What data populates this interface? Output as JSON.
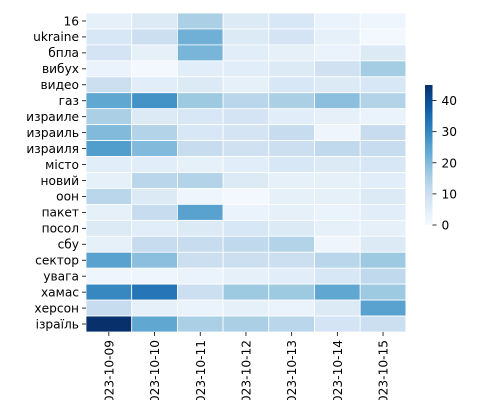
{
  "chart_data": {
    "type": "heatmap",
    "title": "",
    "xlabel": "",
    "ylabel": "",
    "x": [
      "2023-10-09",
      "2023-10-10",
      "2023-10-11",
      "2023-10-12",
      "2023-10-13",
      "2023-10-14",
      "2023-10-15"
    ],
    "y": [
      "16",
      "ukraine",
      "бпла",
      "вибух",
      "видео",
      "газ",
      "израиле",
      "израиль",
      "израиля",
      "місто",
      "новий",
      "оон",
      "пакет",
      "посол",
      "сбу",
      "сектор",
      "увага",
      "хамас",
      "херсон",
      "ізраїль"
    ],
    "values": [
      [
        4,
        6,
        15,
        6,
        7,
        3,
        2
      ],
      [
        7,
        10,
        22,
        6,
        8,
        4,
        1
      ],
      [
        8,
        4,
        21,
        5,
        4,
        3,
        6
      ],
      [
        3,
        1,
        5,
        5,
        6,
        9,
        16
      ],
      [
        10,
        5,
        6,
        4,
        7,
        6,
        7
      ],
      [
        24,
        28,
        17,
        13,
        15,
        19,
        14
      ],
      [
        15,
        6,
        7,
        8,
        5,
        4,
        3
      ],
      [
        20,
        14,
        7,
        8,
        11,
        2,
        11
      ],
      [
        26,
        20,
        11,
        9,
        10,
        12,
        11
      ],
      [
        5,
        5,
        4,
        5,
        7,
        6,
        7
      ],
      [
        4,
        13,
        14,
        6,
        4,
        4,
        5
      ],
      [
        13,
        6,
        2,
        1,
        4,
        4,
        6
      ],
      [
        4,
        11,
        25,
        3,
        4,
        3,
        5
      ],
      [
        6,
        5,
        6,
        7,
        6,
        4,
        4
      ],
      [
        4,
        11,
        11,
        12,
        14,
        2,
        6
      ],
      [
        25,
        19,
        10,
        10,
        10,
        13,
        17
      ],
      [
        2,
        2,
        3,
        4,
        5,
        7,
        12
      ],
      [
        30,
        33,
        10,
        17,
        17,
        24,
        17
      ],
      [
        11,
        4,
        3,
        4,
        3,
        6,
        25
      ],
      [
        45,
        24,
        15,
        15,
        13,
        8,
        10
      ]
    ],
    "colorbar": {
      "min": 0,
      "max": 45,
      "ticks": [
        0,
        10,
        20,
        30,
        40
      ]
    },
    "colormap": "Blues",
    "grid": false,
    "legend": "colorbar-right"
  }
}
